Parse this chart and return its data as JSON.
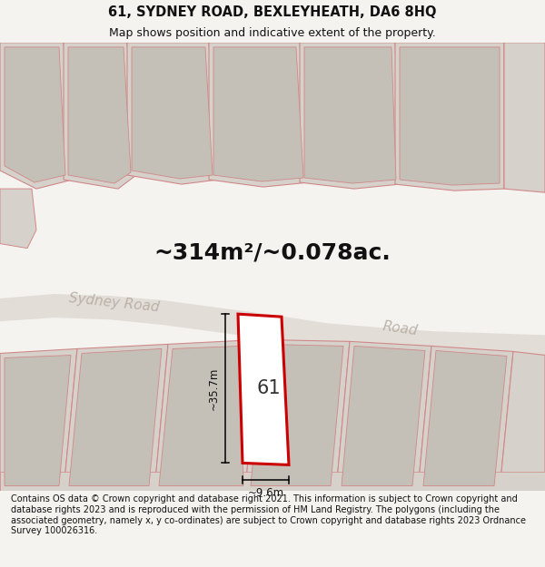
{
  "title_line1": "61, SYDNEY ROAD, BEXLEYHEATH, DA6 8HQ",
  "title_line2": "Map shows position and indicative extent of the property.",
  "area_text": "~314m²/~0.078ac.",
  "label_61": "61",
  "dim_width": "~9.6m",
  "dim_height": "~35.7m",
  "road_label1": "Sydney Road",
  "road_label2": "Road",
  "footer_text": "Contains OS data © Crown copyright and database right 2021. This information is subject to Crown copyright and database rights 2023 and is reproduced with the permission of HM Land Registry. The polygons (including the associated geometry, namely x, y co-ordinates) are subject to Crown copyright and database rights 2023 Ordnance Survey 100026316.",
  "bg_color": "#f5f3f0",
  "map_bg": "#ede9e3",
  "road_fill": "#e2ddd7",
  "plot_fill": "#ffffff",
  "plot_border": "#cc0000",
  "neighbor_fill": "#d6d2cb",
  "neighbor_inner": "#c4c0b8",
  "neighbor_border": "#d08888",
  "title_fontsize": 10.5,
  "subtitle_fontsize": 9,
  "area_fontsize": 18,
  "label_fontsize": 15,
  "road_fontsize": 11,
  "footer_fontsize": 7,
  "dim_fontsize": 8.5
}
